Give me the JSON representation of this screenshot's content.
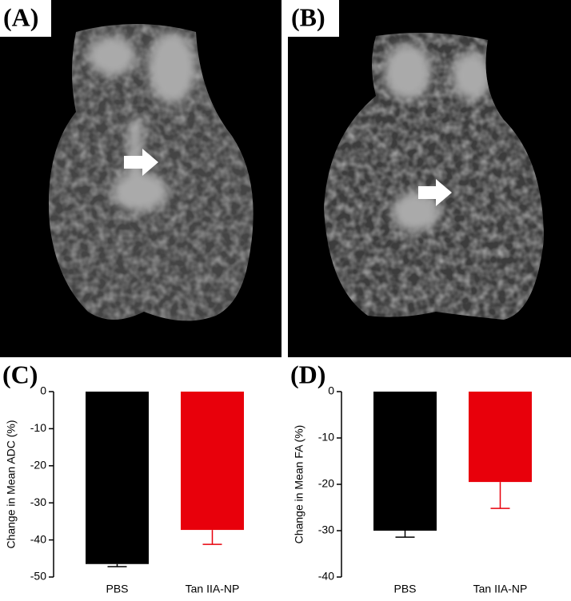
{
  "image_panels": [
    {
      "label": "(A)"
    },
    {
      "label": "(B)"
    }
  ],
  "chart_data": [
    {
      "type": "bar",
      "panel_label": "(C)",
      "ylabel": "Change in  Mean  ADC (%)",
      "categories": [
        "PBS",
        "Tan IIA-NP"
      ],
      "series": [
        {
          "colors": [
            "#000000",
            "#e8000b"
          ],
          "values": [
            -46.5,
            -37.3
          ],
          "errors": [
            0.7,
            3.9
          ]
        }
      ],
      "ylim": [
        -50,
        0
      ],
      "yticks": [
        0,
        -10,
        -20,
        -30,
        -40,
        -50
      ]
    },
    {
      "type": "bar",
      "panel_label": "(D)",
      "ylabel": "Change in Mean  FA (%)",
      "categories": [
        "PBS",
        "Tan IIA-NP"
      ],
      "series": [
        {
          "colors": [
            "#000000",
            "#e8000b"
          ],
          "values": [
            -30.0,
            -19.5
          ],
          "errors": [
            1.4,
            5.7
          ]
        }
      ],
      "ylim": [
        -40,
        0
      ],
      "yticks": [
        0,
        -10,
        -20,
        -30,
        -40
      ]
    }
  ]
}
